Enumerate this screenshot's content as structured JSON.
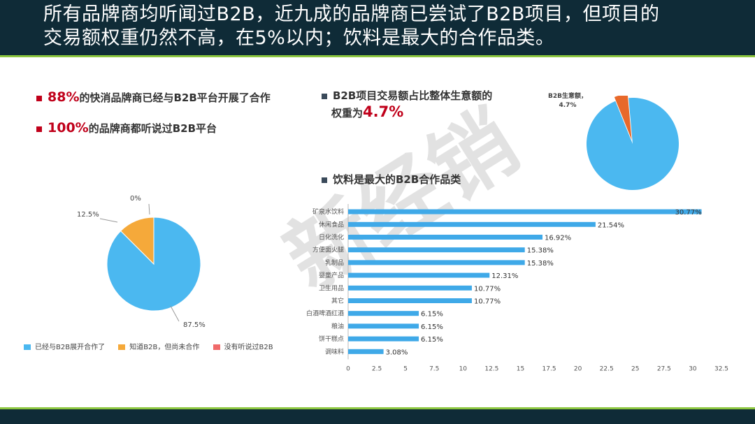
{
  "header": {
    "title_line1": "所有品牌商均听闻过B2B，近九成的品牌商已尝试了B2B项目，但项目的",
    "title_line2": "交易额权重仍然不高，在5%以内；饮料是最大的合作品类。"
  },
  "bullets": {
    "b1_value": "88%",
    "b1_text": "的快消品牌商已经与B2B平台开展了合作",
    "b2_value": "100%",
    "b2_text": "的品牌商都听说过B2B平台",
    "b3_line1": "B2B项目交易额占比整体生意额的",
    "b3_line2": "权重为",
    "b3_value": "4.7%",
    "b4_text": "饮料是最大的B2B合作品类"
  },
  "watermark": "新经销",
  "colors": {
    "header_bg": "#0f2b37",
    "accent_green": "#8cc63f",
    "accent_red": "#c0001a",
    "pie_blue": "#4bb8f0",
    "pie_orange": "#f5a93a",
    "pie_red": "#f06a6a",
    "small_pie_orange": "#e8692a",
    "bar_blue": "#3fa9e8"
  },
  "chart_data": [
    {
      "type": "pie",
      "slices": [
        {
          "name": "已经与B2B展开合作了",
          "value": 87.5,
          "label": "87.5%",
          "color": "#4bb8f0"
        },
        {
          "name": "知道B2B，但尚未合作",
          "value": 12.5,
          "label": "12.5%",
          "color": "#f5a93a"
        },
        {
          "name": "没有听说过B2B",
          "value": 0,
          "label": "0%",
          "color": "#f06a6a"
        }
      ],
      "legend_position": "bottom"
    },
    {
      "type": "pie",
      "slices": [
        {
          "name": "B2B生意额",
          "value": 4.7,
          "label": "B2B生意额，\n4.7%",
          "color": "#e8692a"
        },
        {
          "name": "",
          "value": 95.3,
          "label": "",
          "color": "#4bb8f0"
        }
      ]
    },
    {
      "type": "bar",
      "orientation": "horizontal",
      "categories": [
        "矿泉水饮料",
        "休闲食品",
        "日化洗化",
        "方便面火腿",
        "乳制品",
        "婴童产品",
        "卫生用品",
        "其它",
        "白酒啤酒红酒",
        "粮油",
        "饼干糕点",
        "调味料"
      ],
      "values": [
        30.77,
        21.54,
        16.92,
        15.38,
        15.38,
        12.31,
        10.77,
        10.77,
        6.15,
        6.15,
        6.15,
        3.08
      ],
      "data_labels": [
        "30.77%",
        "21.54%",
        "16.92%",
        "15.38%",
        "15.38%",
        "12.31%",
        "10.77%",
        "10.77%",
        "6.15%",
        "6.15%",
        "6.15%",
        "3.08%"
      ],
      "xticks": [
        "0",
        "2.5",
        "5",
        "7.5",
        "10",
        "12.5",
        "15",
        "17.5",
        "20",
        "22.5",
        "25",
        "27.5",
        "30",
        "32.5"
      ],
      "xlim": [
        0,
        32.5
      ],
      "grid": false
    }
  ]
}
